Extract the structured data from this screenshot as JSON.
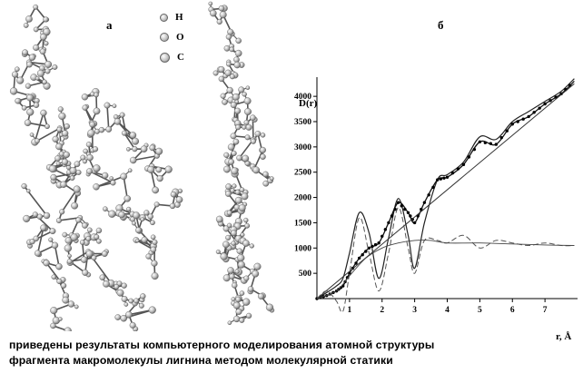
{
  "panel_a": {
    "label": "а",
    "legend": [
      {
        "symbol": "atom-h",
        "label": "H"
      },
      {
        "symbol": "atom-o",
        "label": "O"
      },
      {
        "symbol": "atom-c",
        "label": "C"
      }
    ]
  },
  "panel_b": {
    "label": "б"
  },
  "chart_data": {
    "type": "line",
    "ylabel": "D(r)",
    "xlabel": "r, Å",
    "xlim": [
      0,
      8
    ],
    "ylim": [
      0,
      4200
    ],
    "x_ticks": [
      "1",
      "2",
      "3",
      "4",
      "5",
      "6",
      "7"
    ],
    "y_ticks": [
      "500",
      "1000",
      "1500",
      "2000",
      "2500",
      "3000",
      "3500",
      "4000"
    ],
    "series": [
      {
        "style": "solid-oscillating",
        "x": [
          0,
          0.3,
          0.6,
          0.8,
          1.0,
          1.3,
          1.6,
          1.9,
          2.2,
          2.5,
          2.8,
          3.0,
          3.3,
          3.7,
          4.0,
          4.5,
          5.0,
          5.5,
          6.0,
          6.5,
          7.0,
          7.5,
          7.9
        ],
        "y": [
          0,
          120,
          250,
          400,
          900,
          1700,
          1300,
          400,
          1200,
          1980,
          1250,
          600,
          1500,
          2350,
          2450,
          2700,
          3200,
          3150,
          3500,
          3700,
          3900,
          4100,
          4350
        ]
      },
      {
        "style": "dotted-markers",
        "x": [
          0,
          0.3,
          0.6,
          0.8,
          1.0,
          1.3,
          1.6,
          1.9,
          2.2,
          2.5,
          2.8,
          3.0,
          3.3,
          3.7,
          4.0,
          4.5,
          5.0,
          5.5,
          6.0,
          6.5,
          7.0,
          7.5,
          7.9
        ],
        "y": [
          0,
          60,
          150,
          250,
          500,
          800,
          1000,
          1100,
          1500,
          1900,
          1700,
          1500,
          1900,
          2350,
          2400,
          2650,
          3100,
          3050,
          3450,
          3600,
          3850,
          4050,
          4300
        ]
      },
      {
        "style": "straight-line",
        "x": [
          0,
          7.9
        ],
        "y": [
          0,
          4250
        ]
      },
      {
        "style": "dashed-oscillating",
        "x": [
          0,
          0.3,
          0.6,
          0.8,
          1.0,
          1.3,
          1.6,
          1.9,
          2.2,
          2.5,
          2.8,
          3.0,
          3.3,
          3.7,
          4.0,
          4.5,
          5.0,
          5.5,
          6.0,
          6.5,
          7.0,
          7.5,
          7.9
        ],
        "y": [
          0,
          150,
          -50,
          -250,
          500,
          1600,
          900,
          150,
          900,
          1800,
          1000,
          500,
          1150,
          1150,
          1100,
          1250,
          1000,
          1150,
          1100,
          1050,
          1100,
          1050,
          1050
        ]
      },
      {
        "style": "thin-flat",
        "x": [
          0,
          0.6,
          1.0,
          1.5,
          2.0,
          2.5,
          3.0,
          3.5,
          4.0,
          5.0,
          6.0,
          7.0,
          7.9
        ],
        "y": [
          0,
          150,
          450,
          800,
          1000,
          1100,
          1150,
          1150,
          1100,
          1100,
          1080,
          1060,
          1050
        ]
      }
    ]
  }
}
